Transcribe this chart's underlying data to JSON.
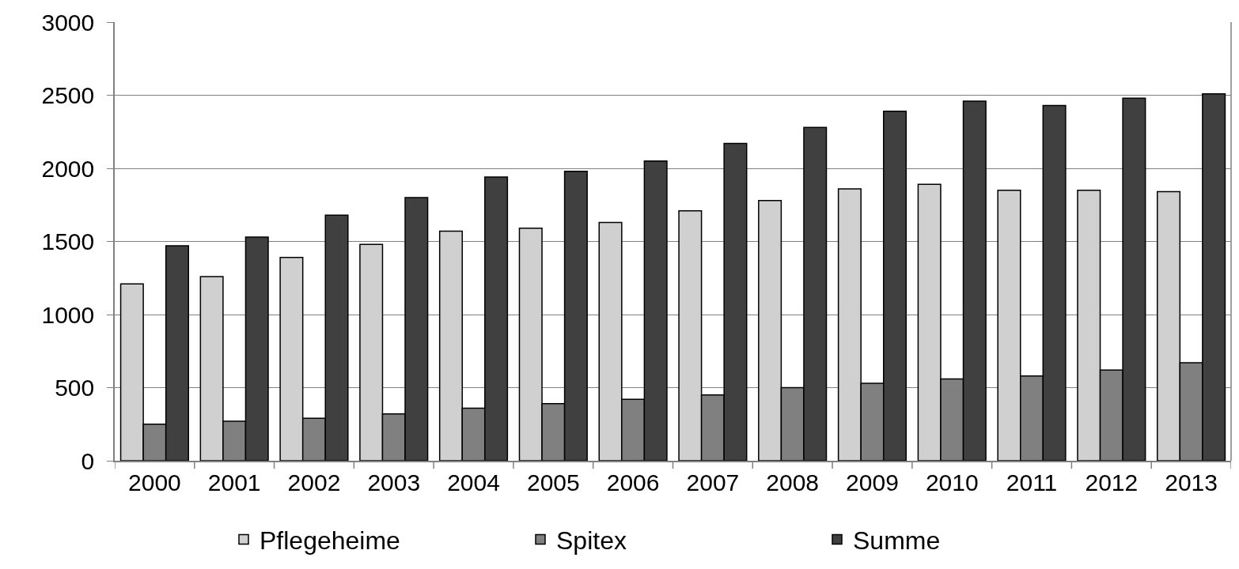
{
  "chart_data": {
    "type": "bar",
    "categories": [
      "2000",
      "2001",
      "2002",
      "2003",
      "2004",
      "2005",
      "2006",
      "2007",
      "2008",
      "2009",
      "2010",
      "2011",
      "2012",
      "2013"
    ],
    "series": [
      {
        "name": "Pflegeheime",
        "color": "#d0d0d0",
        "values": [
          1210,
          1260,
          1390,
          1480,
          1570,
          1590,
          1630,
          1710,
          1780,
          1860,
          1890,
          1850,
          1850,
          1840
        ]
      },
      {
        "name": "Spitex",
        "color": "#808080",
        "values": [
          250,
          270,
          290,
          320,
          360,
          390,
          420,
          450,
          500,
          530,
          560,
          580,
          620,
          670
        ]
      },
      {
        "name": "Summe",
        "color": "#404040",
        "values": [
          1470,
          1530,
          1680,
          1800,
          1940,
          1980,
          2050,
          2170,
          2280,
          2390,
          2460,
          2430,
          2480,
          2510
        ]
      }
    ],
    "ylim": [
      0,
      3000
    ],
    "yticks": [
      0,
      500,
      1000,
      1500,
      2000,
      2500,
      3000
    ],
    "grid": "y",
    "legend": "bottom"
  }
}
